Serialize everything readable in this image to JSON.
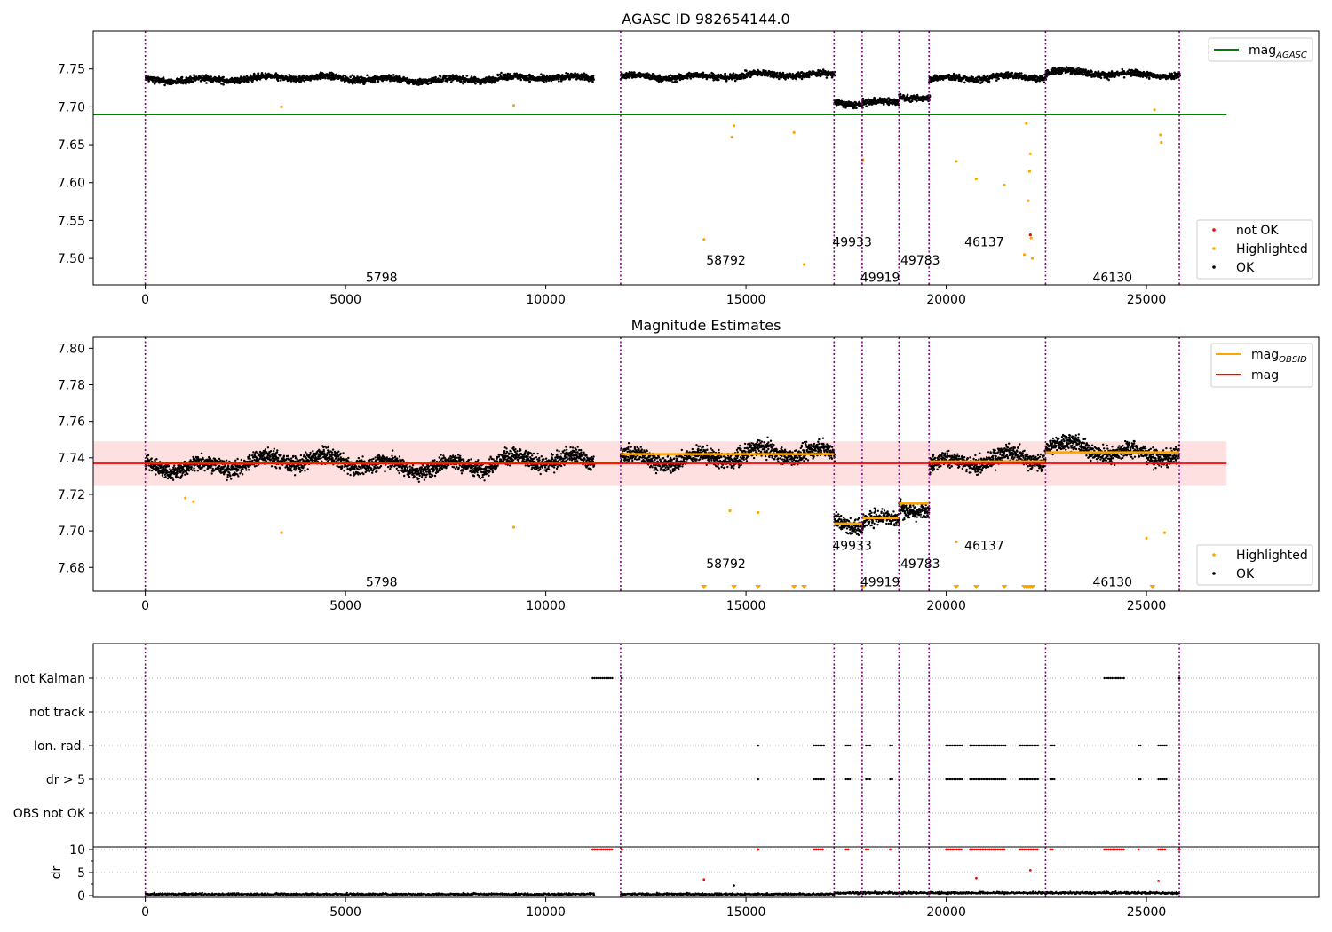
{
  "chart_data": [
    {
      "type": "scatter",
      "title": "AGASC ID 982654144.0",
      "xlim": [
        -1300,
        29300
      ],
      "ylim": [
        7.465,
        7.8
      ],
      "xticks": [
        "0",
        "5000",
        "10000",
        "15000",
        "20000",
        "25000"
      ],
      "yticks": [
        "7.50",
        "7.55",
        "7.60",
        "7.65",
        "7.70",
        "7.75"
      ],
      "vlines": [
        0,
        11870,
        17200,
        17900,
        18820,
        19570,
        22480,
        25820
      ],
      "obsid_labels": [
        {
          "text": "5798",
          "x": 5900,
          "y": 7.475
        },
        {
          "text": "58792",
          "x": 14500,
          "y": 7.498
        },
        {
          "text": "49933",
          "x": 17650,
          "y": 7.522
        },
        {
          "text": "49919",
          "x": 18350,
          "y": 7.475
        },
        {
          "text": "49783",
          "x": 19350,
          "y": 7.498
        },
        {
          "text": "46137",
          "x": 20950,
          "y": 7.522
        },
        {
          "text": "46130",
          "x": 24150,
          "y": 7.475
        }
      ],
      "reference_line": {
        "name": "mag_AGASC",
        "value": 7.69,
        "x_range": [
          -1300,
          27000
        ],
        "color": "#008000"
      },
      "series_style": {
        "ok": "#000000",
        "highlighted": "#ffa500",
        "not_ok": "#ff0000"
      },
      "segments": [
        {
          "x0": 0,
          "x1": 11200,
          "mean": 7.737
        },
        {
          "x0": 11870,
          "x1": 17200,
          "mean": 7.741
        },
        {
          "x0": 17200,
          "x1": 17900,
          "mean": 7.705
        },
        {
          "x0": 17900,
          "x1": 18820,
          "mean": 7.707
        },
        {
          "x0": 18820,
          "x1": 19570,
          "mean": 7.715
        },
        {
          "x0": 19570,
          "x1": 22480,
          "mean": 7.738
        },
        {
          "x0": 22480,
          "x1": 24050,
          "mean": 7.745
        },
        {
          "x0": 24050,
          "x1": 25820,
          "mean": 7.744
        }
      ],
      "highlighted_outliers": [
        [
          3400,
          7.7
        ],
        [
          9200,
          7.702
        ],
        [
          13950,
          7.525
        ],
        [
          14650,
          7.66
        ],
        [
          14700,
          7.675
        ],
        [
          16200,
          7.666
        ],
        [
          16450,
          7.492
        ],
        [
          17920,
          7.63
        ],
        [
          20250,
          7.628
        ],
        [
          20750,
          7.605
        ],
        [
          21450,
          7.597
        ],
        [
          21950,
          7.505
        ],
        [
          22000,
          7.678
        ],
        [
          22050,
          7.576
        ],
        [
          22080,
          7.615
        ],
        [
          22100,
          7.638
        ],
        [
          22120,
          7.527
        ],
        [
          22150,
          7.5
        ],
        [
          25200,
          7.696
        ],
        [
          25350,
          7.663
        ],
        [
          25370,
          7.653
        ]
      ],
      "not_ok_points": [
        [
          22100,
          7.531
        ]
      ],
      "legend": {
        "line_entries": [
          {
            "label": "mag",
            "sub": "AGASC",
            "color": "#008000"
          }
        ],
        "point_entries": [
          {
            "label": "not OK",
            "color": "#ff0000"
          },
          {
            "label": "Highlighted",
            "color": "#ffa500"
          },
          {
            "label": "OK",
            "color": "#000000"
          }
        ]
      }
    },
    {
      "type": "scatter",
      "title": "Magnitude Estimates",
      "xlim": [
        -1300,
        29300
      ],
      "ylim": [
        7.667,
        7.806
      ],
      "xticks": [
        "0",
        "5000",
        "10000",
        "15000",
        "20000",
        "25000"
      ],
      "yticks": [
        "7.68",
        "7.70",
        "7.72",
        "7.74",
        "7.76",
        "7.78",
        "7.80"
      ],
      "vlines": [
        0,
        11870,
        17200,
        17900,
        18820,
        19570,
        22480,
        25820
      ],
      "obsid_labels": [
        {
          "text": "5798",
          "x": 5900,
          "y": 7.672
        },
        {
          "text": "58792",
          "x": 14500,
          "y": 7.682
        },
        {
          "text": "49933",
          "x": 17650,
          "y": 7.692
        },
        {
          "text": "49919",
          "x": 18350,
          "y": 7.672
        },
        {
          "text": "49783",
          "x": 19350,
          "y": 7.682
        },
        {
          "text": "46137",
          "x": 20950,
          "y": 7.692
        },
        {
          "text": "46130",
          "x": 24150,
          "y": 7.672
        }
      ],
      "mag_line": {
        "name": "mag",
        "value": 7.737,
        "band": [
          7.725,
          7.749
        ],
        "x_range": [
          -1300,
          27000
        ],
        "color": "#ff0000"
      },
      "obsid_mag_segments": [
        {
          "x0": 0,
          "x1": 11870,
          "value": 7.737
        },
        {
          "x0": 11870,
          "x1": 17200,
          "value": 7.742
        },
        {
          "x0": 17200,
          "x1": 17900,
          "value": 7.704
        },
        {
          "x0": 17900,
          "x1": 18820,
          "value": 7.707
        },
        {
          "x0": 18820,
          "x1": 19570,
          "value": 7.715
        },
        {
          "x0": 19570,
          "x1": 22480,
          "value": 7.738
        },
        {
          "x0": 22480,
          "x1": 25820,
          "value": 7.743
        }
      ],
      "highlighted_outliers": [
        [
          1000,
          7.718
        ],
        [
          1200,
          7.716
        ],
        [
          3400,
          7.699
        ],
        [
          9200,
          7.702
        ],
        [
          14600,
          7.711
        ],
        [
          15300,
          7.71
        ],
        [
          20250,
          7.694
        ],
        [
          25000,
          7.696
        ],
        [
          25450,
          7.699
        ]
      ],
      "clipped_markers_x": [
        13950,
        14700,
        15300,
        16200,
        16450,
        17920,
        20250,
        20750,
        21450,
        21950,
        22000,
        22050,
        22100,
        22150,
        25150
      ],
      "legend": {
        "line_entries": [
          {
            "label": "mag",
            "sub": "OBSID",
            "color": "#ffa500"
          },
          {
            "label": "mag",
            "sub": "",
            "color": "#ff0000"
          }
        ],
        "point_entries": [
          {
            "label": "Highlighted",
            "color": "#ffa500"
          },
          {
            "label": "OK",
            "color": "#000000"
          }
        ]
      }
    },
    {
      "type": "scatter",
      "title": "",
      "xlim": [
        -1300,
        29300
      ],
      "xticks": [
        "0",
        "5000",
        "10000",
        "15000",
        "20000",
        "25000"
      ],
      "vlines": [
        0,
        11870,
        17200,
        17900,
        18820,
        19570,
        22480,
        25820
      ],
      "flag_rows": [
        "not Kalman",
        "not track",
        "Ion. rad.",
        "dr > 5",
        "OBS not OK"
      ],
      "flags": {
        "not Kalman": [
          [
            11170,
            11700
          ],
          [
            23950,
            24450
          ],
          [
            11900,
            11900
          ],
          [
            25820,
            25820
          ]
        ],
        "not track": [],
        "Ion. rad.": [
          [
            15300,
            15300
          ],
          [
            16700,
            16950
          ],
          [
            17500,
            17600
          ],
          [
            18000,
            18100
          ],
          [
            18600,
            18650
          ],
          [
            20000,
            20400
          ],
          [
            20600,
            21500
          ],
          [
            21850,
            22300
          ],
          [
            22600,
            22700
          ],
          [
            24800,
            24850
          ],
          [
            25300,
            25500
          ]
        ],
        "dr > 5": [
          [
            15300,
            15300
          ],
          [
            16700,
            16950
          ],
          [
            17500,
            17600
          ],
          [
            18000,
            18100
          ],
          [
            18600,
            18650
          ],
          [
            20000,
            20400
          ],
          [
            20600,
            21500
          ],
          [
            21850,
            22300
          ],
          [
            22600,
            22700
          ],
          [
            24800,
            24850
          ],
          [
            25300,
            25500
          ]
        ],
        "OBS not OK": []
      },
      "dr_panel": {
        "ylabel": "dr",
        "yticks": [
          "0",
          "5",
          "10"
        ],
        "ylim": [
          -1,
          11.5
        ],
        "clip_value": 10,
        "clipped_ranges": [
          [
            11170,
            11700
          ],
          [
            11900,
            11900
          ],
          [
            15300,
            15300
          ],
          [
            16700,
            16950
          ],
          [
            17500,
            17600
          ],
          [
            18000,
            18100
          ],
          [
            18600,
            18650
          ],
          [
            20000,
            20400
          ],
          [
            20600,
            21500
          ],
          [
            21850,
            22300
          ],
          [
            22600,
            22700
          ],
          [
            23950,
            24450
          ],
          [
            24800,
            24850
          ],
          [
            25300,
            25500
          ],
          [
            25820,
            25820
          ]
        ],
        "red_outliers": [
          [
            13950,
            3.5
          ],
          [
            20750,
            3.8
          ],
          [
            22100,
            5.5
          ],
          [
            25300,
            3.2
          ]
        ],
        "black_outliers": [
          [
            14700,
            2.2
          ]
        ],
        "baseline": 0.3
      }
    }
  ]
}
